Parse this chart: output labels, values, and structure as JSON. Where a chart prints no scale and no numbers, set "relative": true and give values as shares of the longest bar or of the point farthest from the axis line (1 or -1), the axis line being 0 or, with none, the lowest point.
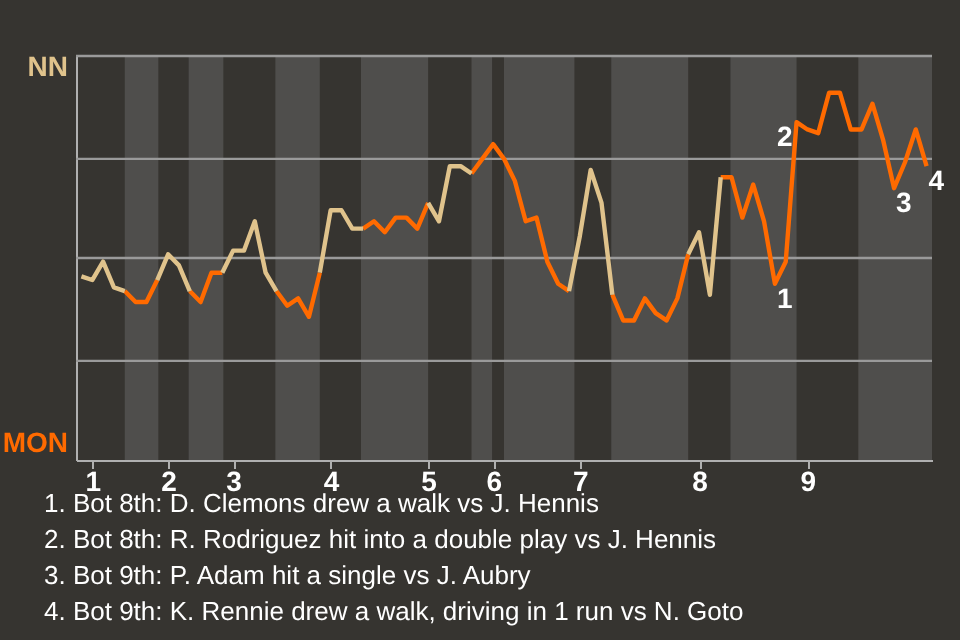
{
  "chart_data": {
    "type": "line",
    "relative": true,
    "categories": [
      null,
      "1",
      null,
      null,
      null,
      null,
      null,
      null,
      "2",
      null,
      null,
      null,
      null,
      null,
      "3",
      null,
      null,
      null,
      null,
      null,
      null,
      null,
      null,
      "4",
      null,
      null,
      null,
      null,
      null,
      null,
      null,
      null,
      "5",
      null,
      null,
      null,
      null,
      null,
      "6",
      null,
      null,
      null,
      null,
      null,
      null,
      null,
      "7",
      null,
      null,
      null,
      null,
      null,
      null,
      null,
      null,
      null,
      null,
      "8",
      null,
      null,
      null,
      null,
      null,
      null,
      null,
      null,
      null,
      "9",
      null,
      null,
      null,
      null,
      null,
      null,
      null,
      null,
      null,
      null,
      null
    ],
    "series": [
      {
        "color": "#e0c38c",
        "values": [
          0.5,
          0.49,
          0.54,
          0.47,
          0.46,
          null,
          null,
          0.49,
          0.56,
          0.53,
          0.46,
          null,
          null,
          0.51,
          0.57,
          0.57,
          0.65,
          0.51,
          0.46,
          null,
          null,
          null,
          0.51,
          0.68,
          0.68,
          0.63,
          0.63,
          null,
          null,
          null,
          null,
          null,
          0.7,
          0.65,
          0.8,
          0.8,
          0.78,
          null,
          null,
          null,
          null,
          null,
          null,
          null,
          null,
          0.46,
          0.61,
          0.79,
          0.7,
          0.45,
          null,
          null,
          null,
          null,
          null,
          null,
          0.56,
          0.62,
          0.45,
          0.77,
          null,
          null,
          null,
          null,
          null,
          null,
          null,
          null,
          null,
          null,
          null,
          null,
          null,
          null,
          null,
          null,
          null,
          null,
          null
        ]
      },
      {
        "color": "#ff6a00",
        "values": [
          null,
          null,
          null,
          null,
          0.46,
          0.43,
          0.43,
          0.49,
          null,
          null,
          0.46,
          0.43,
          0.51,
          0.51,
          null,
          null,
          null,
          null,
          0.46,
          0.42,
          0.44,
          0.39,
          0.51,
          null,
          null,
          null,
          0.63,
          0.65,
          0.62,
          0.66,
          0.66,
          0.63,
          0.7,
          null,
          null,
          null,
          0.78,
          0.82,
          0.86,
          0.82,
          0.76,
          0.65,
          0.66,
          0.54,
          0.48,
          0.46,
          null,
          null,
          null,
          0.45,
          0.38,
          0.38,
          0.44,
          0.4,
          0.38,
          0.44,
          0.56,
          null,
          null,
          0.77,
          0.77,
          0.66,
          0.75,
          0.65,
          0.48,
          0.54,
          0.92,
          0.9,
          0.89,
          1.0,
          1.0,
          0.9,
          0.9,
          0.97,
          0.87,
          0.74,
          0.81,
          0.9,
          0.8
        ]
      }
    ],
    "ref_lines": [
      {
        "axis": "y",
        "value": 0.27,
        "color": "#9a9a9a"
      },
      {
        "axis": "y",
        "value": 0.55,
        "color": "#9a9a9a"
      },
      {
        "axis": "y",
        "value": 0.82,
        "color": "#9a9a9a"
      },
      {
        "axis": "y",
        "value": 1.1,
        "color": "#9a9a9a"
      }
    ],
    "annotations": [
      {
        "text": "1",
        "y": 0.48
      },
      {
        "text": "2",
        "y": 0.92
      },
      {
        "text": "3",
        "y": 0.74
      },
      {
        "text": "4",
        "y": 0.8
      },
      "NN",
      "MON",
      "1. Bot 8th: D. Clemons drew a walk vs J. Hennis",
      "2. Bot 8th: R. Rodriguez hit into a double play vs J. Hennis",
      "3. Bot 9th: P. Adam hit a single vs J. Aubry",
      "4. Bot 9th: K. Rennie drew a walk, driving in 1 run vs N. Goto"
    ]
  }
}
